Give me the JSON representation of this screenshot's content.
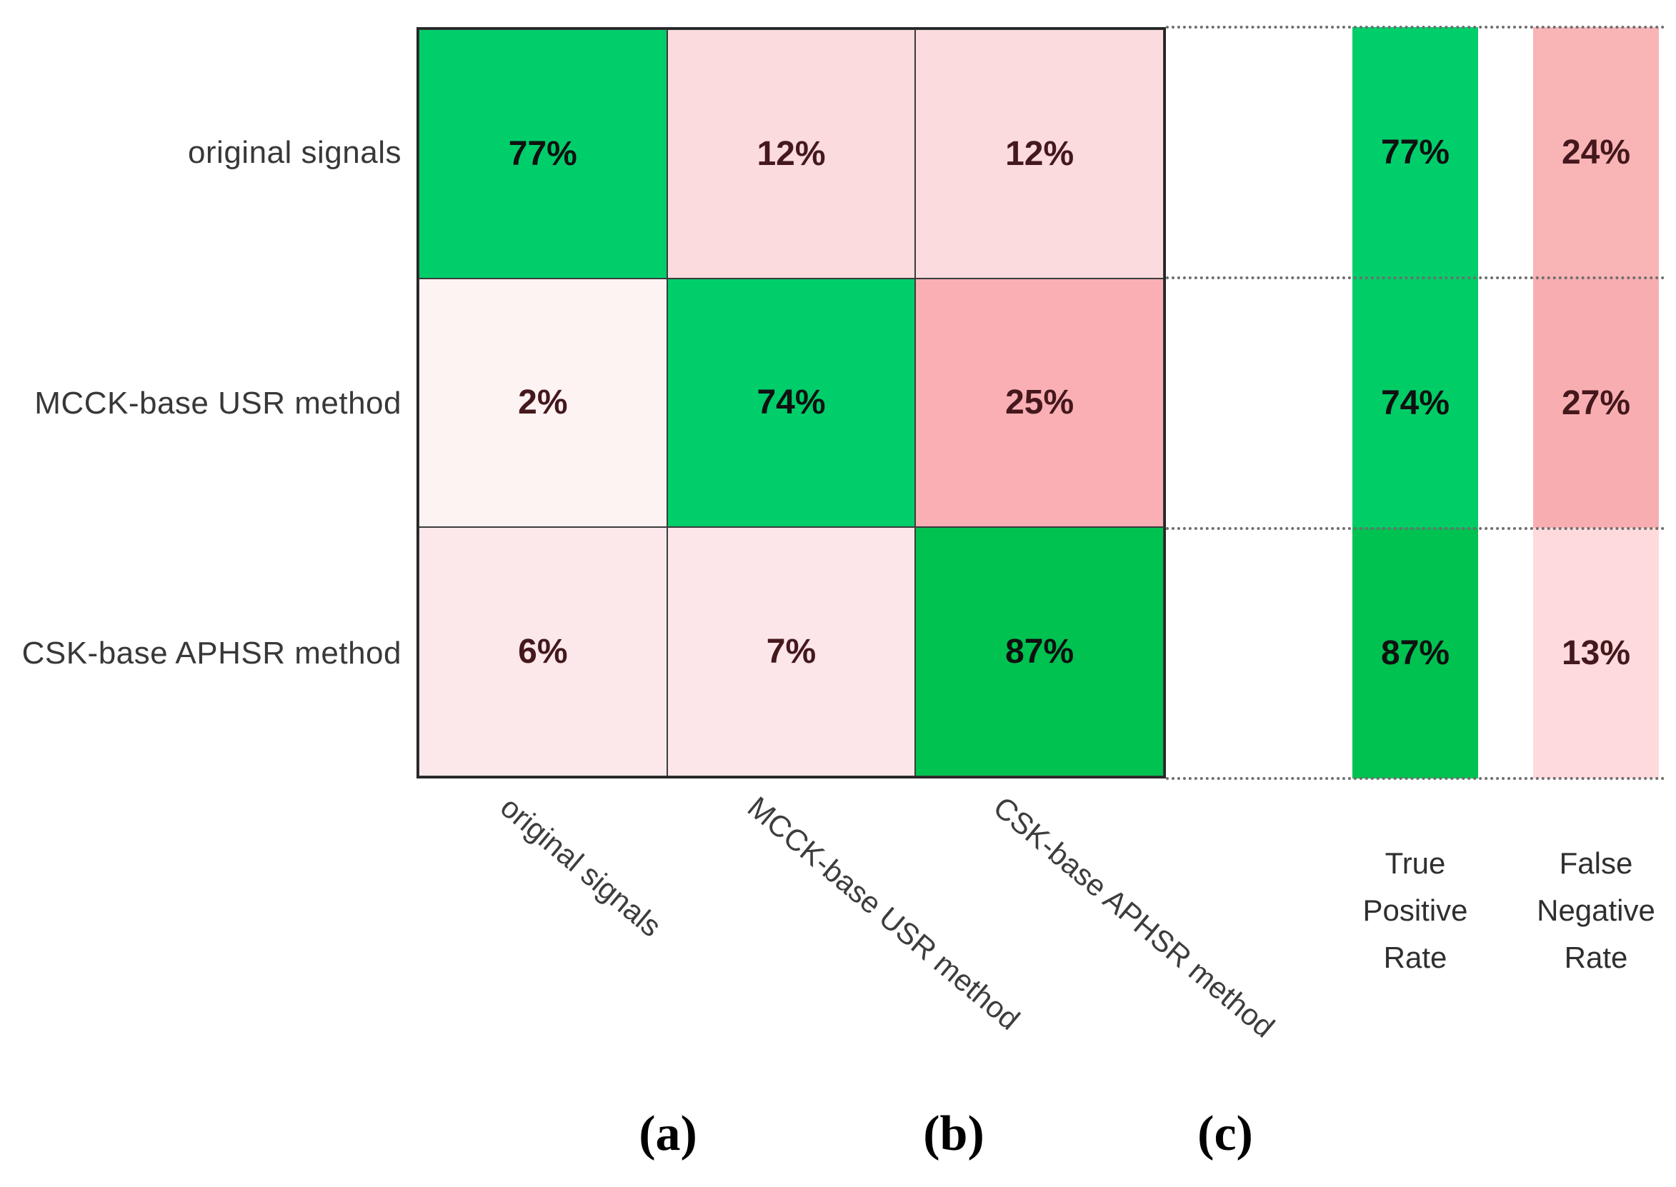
{
  "figure": {
    "row_labels": [
      "original signals",
      "MCCK-base USR method",
      "CSK-base APHSR method"
    ],
    "col_labels": [
      "original signals",
      "MCCK-base USR method",
      "CSK-base APHSR method"
    ],
    "matrix": {
      "rows": [
        {
          "cells": [
            {
              "v": "77%",
              "bg": "#00ce6b",
              "fg": "#101010"
            },
            {
              "v": "12%",
              "bg": "#fbdbdd",
              "fg": "#44181c"
            },
            {
              "v": "12%",
              "bg": "#fbdbdd",
              "fg": "#44181c"
            }
          ]
        },
        {
          "cells": [
            {
              "v": "2%",
              "bg": "#fdf3f3",
              "fg": "#44181c"
            },
            {
              "v": "74%",
              "bg": "#00ce6b",
              "fg": "#101010"
            },
            {
              "v": "25%",
              "bg": "#f9afb4",
              "fg": "#44181c"
            }
          ]
        },
        {
          "cells": [
            {
              "v": "6%",
              "bg": "#fce8eb",
              "fg": "#44181c"
            },
            {
              "v": "7%",
              "bg": "#fce6e9",
              "fg": "#44181c"
            },
            {
              "v": "87%",
              "bg": "#00c250",
              "fg": "#101010"
            }
          ]
        }
      ]
    },
    "tpr_column": {
      "header_lines": [
        "True",
        "Positive",
        "Rate"
      ],
      "cells": [
        {
          "v": "77%",
          "bg": "#00ce6b",
          "fg": "#101010"
        },
        {
          "v": "74%",
          "bg": "#00cd66",
          "fg": "#101010"
        },
        {
          "v": "87%",
          "bg": "#00c250",
          "fg": "#101010"
        }
      ]
    },
    "fnr_column": {
      "header_lines": [
        "False",
        "Negative",
        "Rate"
      ],
      "cells": [
        {
          "v": "24%",
          "bg": "#f9b4b6",
          "fg": "#44181c"
        },
        {
          "v": "27%",
          "bg": "#f8aeb1",
          "fg": "#44181c"
        },
        {
          "v": "13%",
          "bg": "#fedadc",
          "fg": "#44181c"
        }
      ]
    },
    "panel_labels": [
      "(a)",
      "(b)",
      "(c)"
    ],
    "colors": {
      "green_high": "#00ce6b",
      "green_87": "#00c250",
      "pink_light": "#fbdbdd",
      "pink_medium": "#f9afb4",
      "grid_line": "#3b3b3b",
      "outer_border": "#262626",
      "dotted_separator": "#6e6e6e",
      "label_gray": "#383838"
    }
  },
  "chart_data": {
    "type": "heatmap",
    "title": "",
    "rows": [
      "original signals",
      "MCCK-base USR method",
      "CSK-base APHSR method"
    ],
    "columns": [
      "original signals",
      "MCCK-base USR method",
      "CSK-base APHSR method"
    ],
    "values_percent": [
      [
        77,
        12,
        12
      ],
      [
        2,
        74,
        25
      ],
      [
        6,
        7,
        87
      ]
    ],
    "true_positive_rate_percent": [
      77,
      74,
      87
    ],
    "false_negative_rate_percent": [
      24,
      27,
      13
    ],
    "side_column_labels": [
      "True Positive Rate",
      "False Negative Rate"
    ],
    "panel_labels": [
      "(a)",
      "(b)",
      "(c)"
    ],
    "legend_position": "none",
    "grid": true,
    "x_tick_rotation_deg": 40,
    "color_encoding": "green = correct/high value, pink = error, intensity scales with percentage"
  }
}
